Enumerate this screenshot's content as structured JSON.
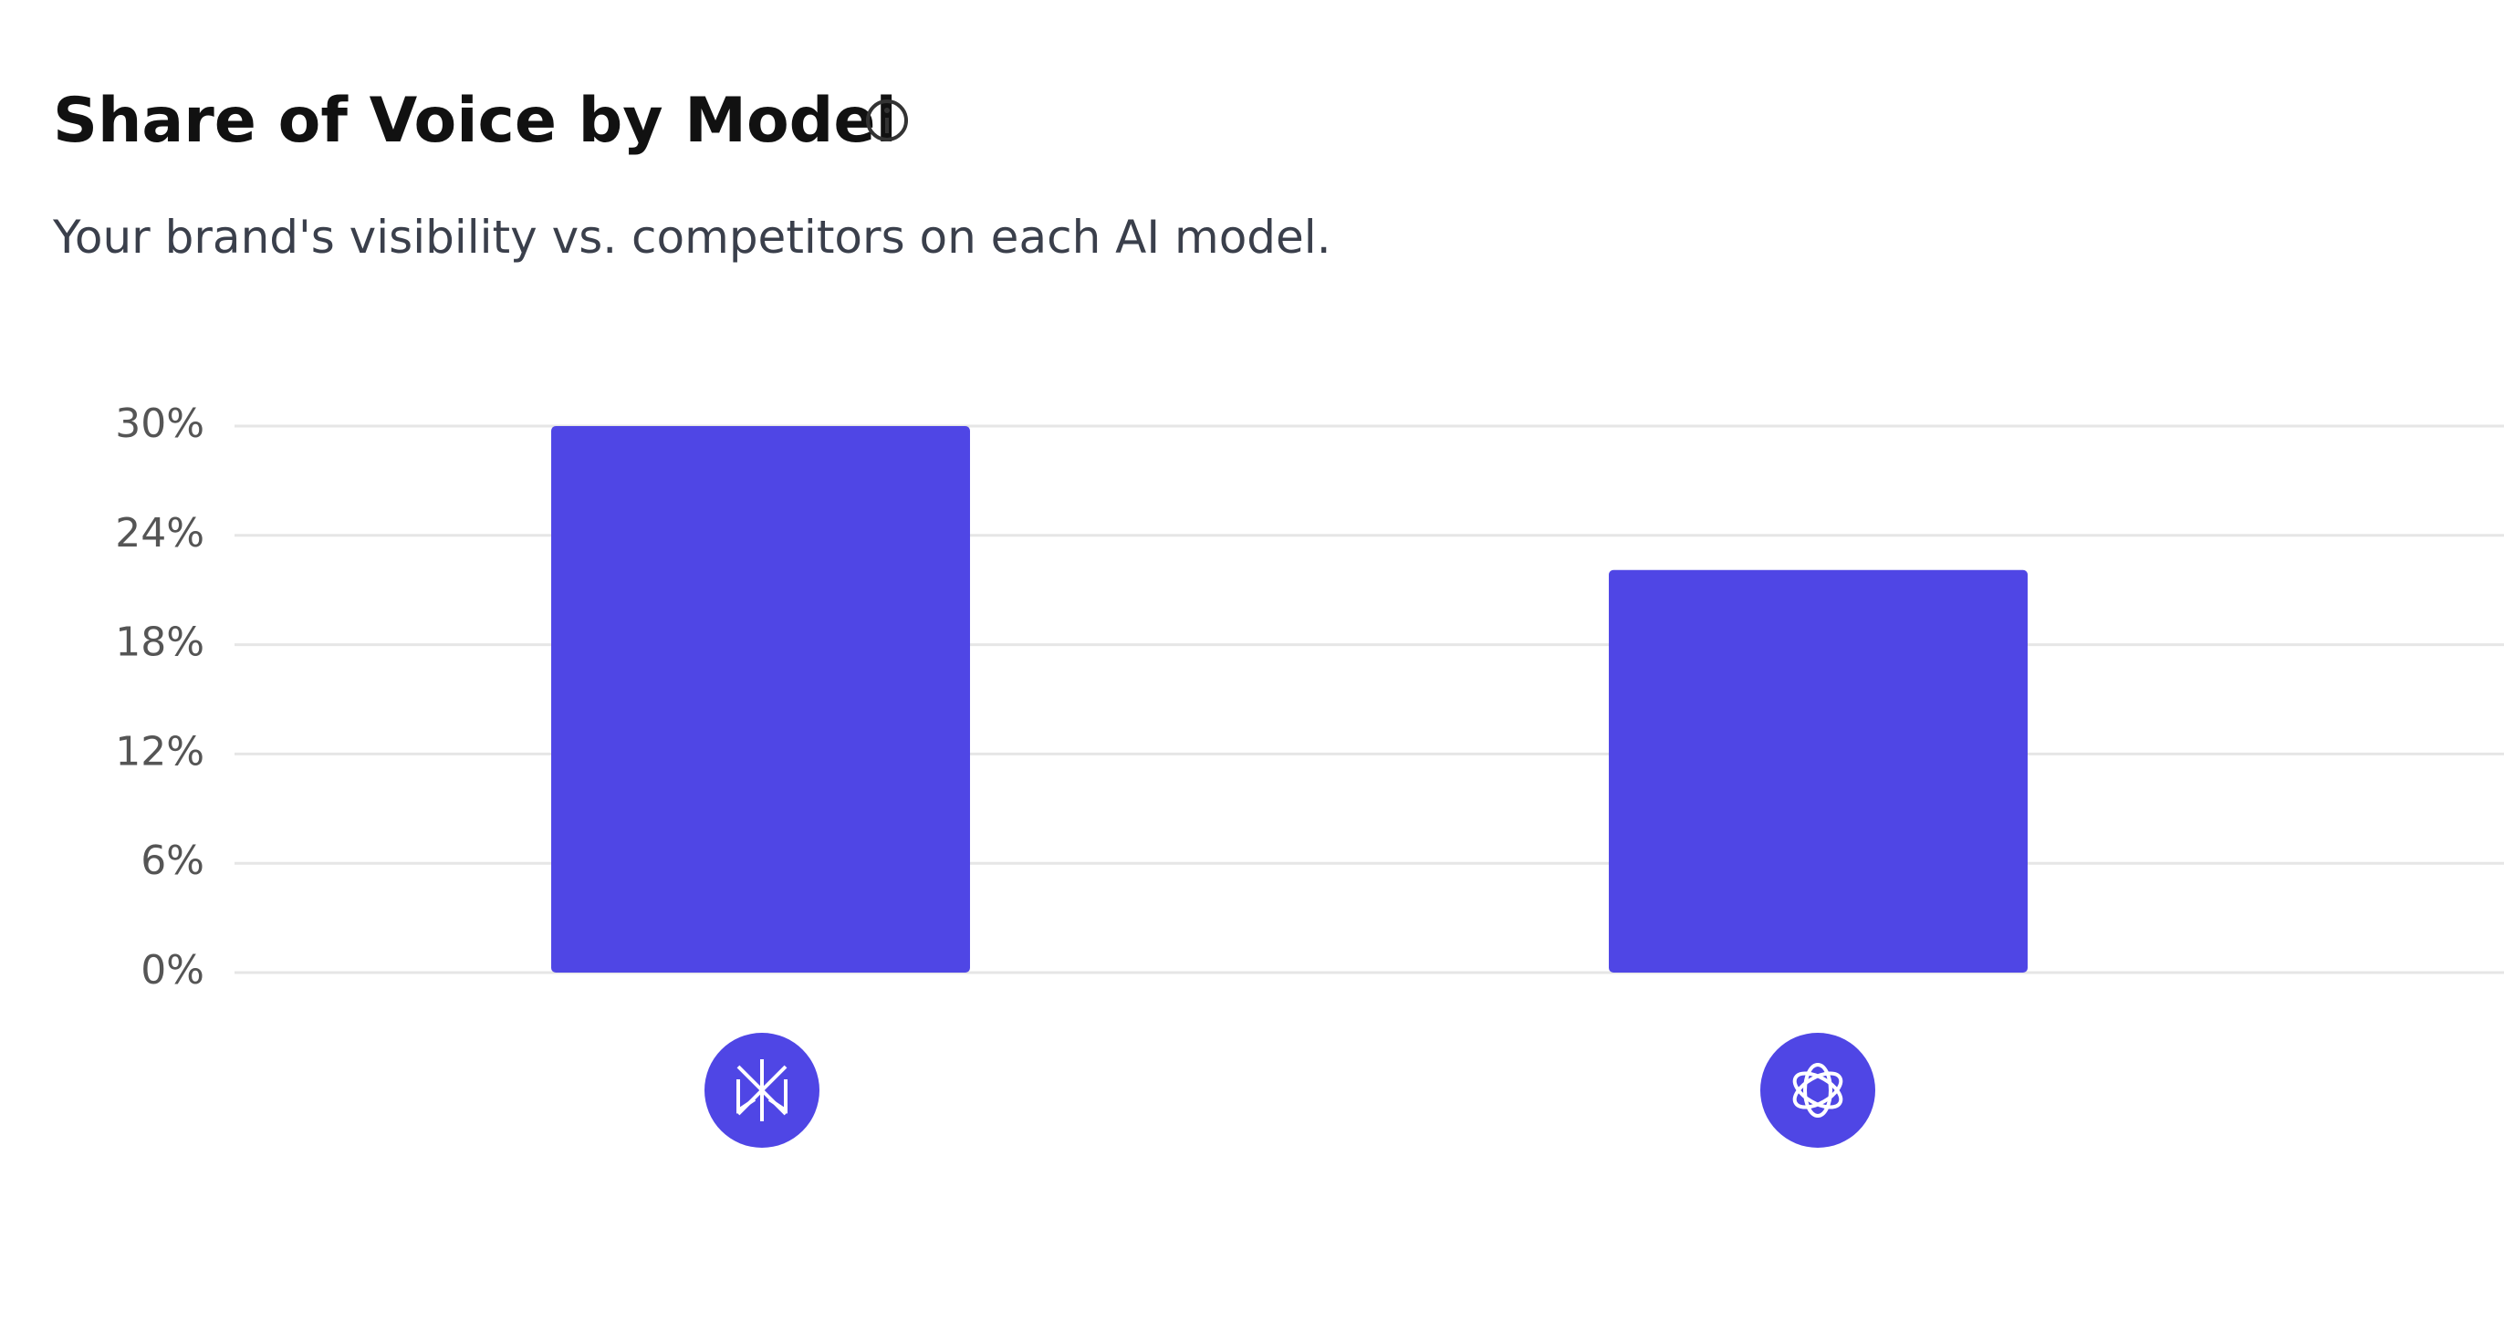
{
  "chart_data": {
    "type": "bar",
    "title": "Share of Voice by Model",
    "subtitle": "Your brand's visibility vs. competitors on each AI model.",
    "categories": [
      null,
      null
    ],
    "values": [
      30,
      22.1
    ],
    "color": "#4f46e5",
    "ylim": [
      0,
      30
    ],
    "yticks": [
      {
        "value": 0,
        "label": "0%"
      },
      {
        "value": 6,
        "label": "6%"
      },
      {
        "value": 12,
        "label": "12%"
      },
      {
        "value": 18,
        "label": "18%"
      },
      {
        "value": 24,
        "label": "24%"
      },
      {
        "value": 30,
        "label": "30%"
      }
    ],
    "grid": true
  }
}
